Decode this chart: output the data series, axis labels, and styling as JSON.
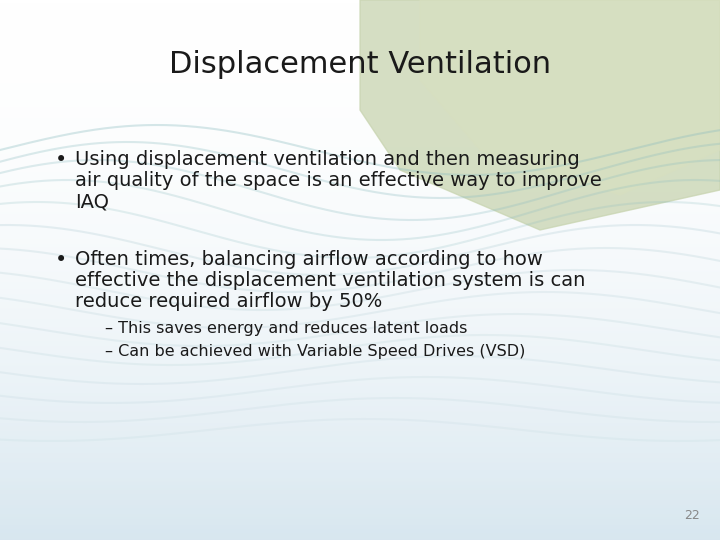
{
  "title": "Displacement Ventilation",
  "title_fontsize": 22,
  "bullet1_line1": "Using displacement ventilation and then measuring",
  "bullet1_line2": "air quality of the space is an effective way to improve",
  "bullet1_line3": "IAQ",
  "bullet2_line1": "Often times, balancing airflow according to how",
  "bullet2_line2": "effective the displacement ventilation system is can",
  "bullet2_line3": "reduce required airflow by 50%",
  "sub1": "This saves energy and reduces latent loads",
  "sub2": "Can be achieved with Variable Speed Drives (VSD)",
  "bullet_fontsize": 14,
  "sub_fontsize": 11.5,
  "text_color": "#1a1a1a",
  "page_number": "22",
  "green_region_color": "#c8d4b8",
  "wave_color": "#a8c8cc",
  "bg_bottom_color": "#d0e4ec"
}
